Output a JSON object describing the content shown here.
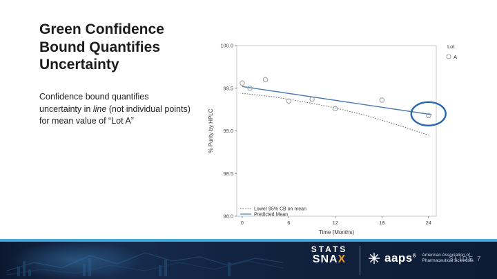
{
  "slide": {
    "title": "Green Confidence Bound Quantifies Uncertainty",
    "body_pre": "Confidence bound quantifies uncertainty in ",
    "body_italic": "line",
    "body_post": " (not individual points) for mean value of “Lot A”"
  },
  "footer": {
    "brand_top": "STATS",
    "brand_bottom_pre": "SNA",
    "brand_bottom_x": "X",
    "aaps": "aaps",
    "aaps_reg": "®",
    "aaps_sub1": "American Association of",
    "aaps_sub2": "Pharmaceutical Scientists",
    "slide_label": "SLIDE 7",
    "accent_line_color": "#45aadd",
    "brand_accent_color": "#f59b20"
  },
  "chart_data": {
    "type": "scatter",
    "title": "",
    "xlabel": "Time (Months)",
    "ylabel": "% Purity by HPLC",
    "xlim": [
      -0.7,
      25
    ],
    "ylim": [
      98.0,
      100.0
    ],
    "xticks": [
      0,
      6,
      12,
      18,
      24
    ],
    "yticks": [
      98.0,
      98.5,
      99.0,
      99.5,
      100.0
    ],
    "legend_title": "Lot",
    "legend_series": "A",
    "points": {
      "x": [
        0,
        1,
        3,
        6,
        9,
        12,
        18,
        24
      ],
      "y": [
        99.56,
        99.5,
        99.6,
        99.35,
        99.37,
        99.26,
        99.36,
        99.18
      ]
    },
    "predicted_mean": {
      "x": [
        0,
        24.4
      ],
      "y": [
        99.52,
        99.19
      ]
    },
    "lower_cb": {
      "x": [
        0,
        4,
        8,
        12,
        16,
        20,
        24
      ],
      "y": [
        99.44,
        99.4,
        99.34,
        99.27,
        99.18,
        99.07,
        98.95
      ]
    },
    "legend_items": [
      "Lower 95% CB on mean",
      "Predicted Mean"
    ],
    "annotation_circle": {
      "x": 24,
      "y": 99.2
    },
    "colors": {
      "point": "#9aa4ad",
      "mean_line": "#4a7bb0",
      "cb_line": "#4f6352",
      "annotation": "#2667ae",
      "frame": "#c5c9cd"
    }
  }
}
